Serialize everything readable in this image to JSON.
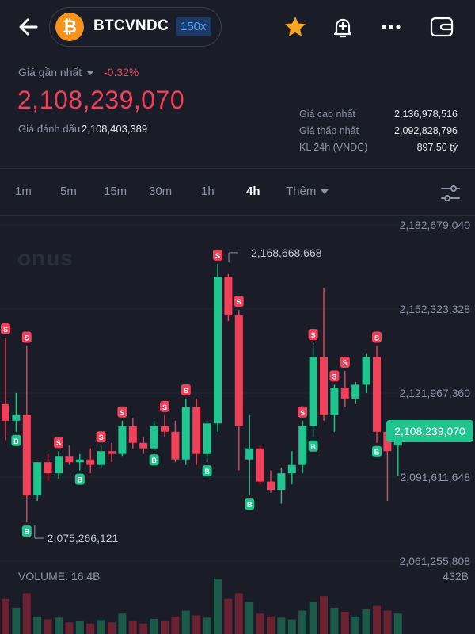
{
  "header": {
    "pair": "BTCVNDC",
    "leverage": "150x",
    "coin_glyph": "₿",
    "icons": [
      "back-arrow-icon",
      "star-icon",
      "bell-plus-icon",
      "more-icon",
      "wallet-icon"
    ]
  },
  "price": {
    "last_label": "Giá gần nhất",
    "change": "-0.32%",
    "last_price": "2,108,239,070",
    "mark_label": "Giá đánh dấu",
    "mark_price": "2,108,403,389"
  },
  "stats": [
    {
      "label": "Giá cao nhất",
      "value": "2,136,978,516"
    },
    {
      "label": "Giá thấp nhất",
      "value": "2,092,828,796"
    },
    {
      "label": "KL 24h (VNDC)",
      "value": "897.50 tỷ"
    }
  ],
  "timeframes": {
    "items": [
      "1m",
      "5m",
      "15m",
      "30m",
      "1h",
      "4h"
    ],
    "active": "4h",
    "more_label": "Thêm"
  },
  "chart_meta": {
    "watermark": "onus",
    "volume_label": "VOLUME: 16.4B",
    "volume_max": "432B",
    "high_annotation": "2,168,668,668",
    "low_annotation": "2,075,266,121",
    "current_price": "2,108,239,070",
    "buy_marker": "B",
    "sell_marker": "S"
  },
  "colors": {
    "bg": "#1a1d27",
    "up": "#1fc48e",
    "down": "#f0405a",
    "accent_orange": "#f7931a",
    "star": "#f5a623",
    "lev_text": "#4da3ff"
  },
  "chart_data": {
    "type": "candlestick",
    "y_ticks": [
      "2,182,679,040",
      "2,152,323,328",
      "2,121,967,360",
      "2,091,611,648",
      "2,061,255,808"
    ],
    "ylim": [
      2061255808,
      2182679040
    ],
    "candles": [
      {
        "o": 2118000000,
        "h": 2142000000,
        "l": 2105000000,
        "c": 2112000000,
        "s": 1
      },
      {
        "o": 2112000000,
        "h": 2122000000,
        "l": 2108000000,
        "c": 2114000000,
        "b": 1
      },
      {
        "o": 2114000000,
        "h": 2139000000,
        "l": 2075266121,
        "c": 2085000000,
        "s": 1,
        "b": 1
      },
      {
        "o": 2085000000,
        "h": 2097000000,
        "l": 2083000000,
        "c": 2097000000
      },
      {
        "o": 2097000000,
        "h": 2100000000,
        "l": 2090000000,
        "c": 2093000000
      },
      {
        "o": 2093000000,
        "h": 2101000000,
        "l": 2091000000,
        "c": 2099000000,
        "s": 1
      },
      {
        "o": 2099000000,
        "h": 2103000000,
        "l": 2096000000,
        "c": 2097000000
      },
      {
        "o": 2097000000,
        "h": 2100000000,
        "l": 2094000000,
        "c": 2098000000,
        "b": 1
      },
      {
        "o": 2098000000,
        "h": 2102000000,
        "l": 2093000000,
        "c": 2096000000
      },
      {
        "o": 2096000000,
        "h": 2103000000,
        "l": 2095000000,
        "c": 2101000000,
        "s": 1
      },
      {
        "o": 2101000000,
        "h": 2104000000,
        "l": 2097000000,
        "c": 2100000000
      },
      {
        "o": 2100000000,
        "h": 2112000000,
        "l": 2099000000,
        "c": 2110000000,
        "s": 1
      },
      {
        "o": 2110000000,
        "h": 2113000000,
        "l": 2102000000,
        "c": 2104000000
      },
      {
        "o": 2104000000,
        "h": 2106000000,
        "l": 2100000000,
        "c": 2102000000
      },
      {
        "o": 2102000000,
        "h": 2112000000,
        "l": 2101000000,
        "c": 2110000000,
        "b": 1
      },
      {
        "o": 2110000000,
        "h": 2114000000,
        "l": 2106000000,
        "c": 2108000000,
        "s": 1
      },
      {
        "o": 2108000000,
        "h": 2112000000,
        "l": 2097000000,
        "c": 2098000000
      },
      {
        "o": 2098000000,
        "h": 2120000000,
        "l": 2096000000,
        "c": 2117000000,
        "s": 1
      },
      {
        "o": 2117000000,
        "h": 2120000000,
        "l": 2096000000,
        "c": 2100000000
      },
      {
        "o": 2100000000,
        "h": 2112000000,
        "l": 2097000000,
        "c": 2111000000,
        "b": 1
      },
      {
        "o": 2111000000,
        "h": 2168668668,
        "l": 2108000000,
        "c": 2164000000,
        "s": 1
      },
      {
        "o": 2164000000,
        "h": 2165000000,
        "l": 2148000000,
        "c": 2150000000
      },
      {
        "o": 2150000000,
        "h": 2152000000,
        "l": 2094000000,
        "c": 2110000000,
        "s": 1
      },
      {
        "o": 2098000000,
        "h": 2114000000,
        "l": 2085000000,
        "c": 2102000000,
        "b": 1
      },
      {
        "o": 2102000000,
        "h": 2103000000,
        "l": 2089000000,
        "c": 2090000000
      },
      {
        "o": 2090000000,
        "h": 2094000000,
        "l": 2086000000,
        "c": 2087000000
      },
      {
        "o": 2087000000,
        "h": 2095000000,
        "l": 2082000000,
        "c": 2093000000
      },
      {
        "o": 2093000000,
        "h": 2101000000,
        "l": 2089000000,
        "c": 2096000000
      },
      {
        "o": 2096000000,
        "h": 2112000000,
        "l": 2093000000,
        "c": 2110000000,
        "s": 1
      },
      {
        "o": 2110000000,
        "h": 2140000000,
        "l": 2106000000,
        "c": 2135000000,
        "s": 1,
        "b": 1
      },
      {
        "o": 2135000000,
        "h": 2160000000,
        "l": 2112000000,
        "c": 2114000000
      },
      {
        "o": 2114000000,
        "h": 2125000000,
        "l": 2108000000,
        "c": 2124000000,
        "s": 1
      },
      {
        "o": 2124000000,
        "h": 2130000000,
        "l": 2117000000,
        "c": 2120000000,
        "s": 1
      },
      {
        "o": 2120000000,
        "h": 2126000000,
        "l": 2118000000,
        "c": 2125000000
      },
      {
        "o": 2125000000,
        "h": 2136000000,
        "l": 2122000000,
        "c": 2135000000
      },
      {
        "o": 2135000000,
        "h": 2139000000,
        "l": 2104000000,
        "c": 2108000000,
        "s": 1,
        "b": 1
      },
      {
        "o": 2108000000,
        "h": 2110000000,
        "l": 2083000000,
        "c": 2101000000
      },
      {
        "o": 2103000000,
        "h": 2110000000,
        "l": 2092000000,
        "c": 2108239070
      }
    ],
    "volume": [
      60,
      45,
      70,
      30,
      25,
      28,
      20,
      22,
      18,
      24,
      20,
      35,
      22,
      18,
      26,
      22,
      30,
      40,
      32,
      28,
      95,
      60,
      70,
      55,
      35,
      30,
      28,
      25,
      40,
      55,
      65,
      45,
      38,
      30,
      42,
      48,
      40,
      35
    ]
  }
}
